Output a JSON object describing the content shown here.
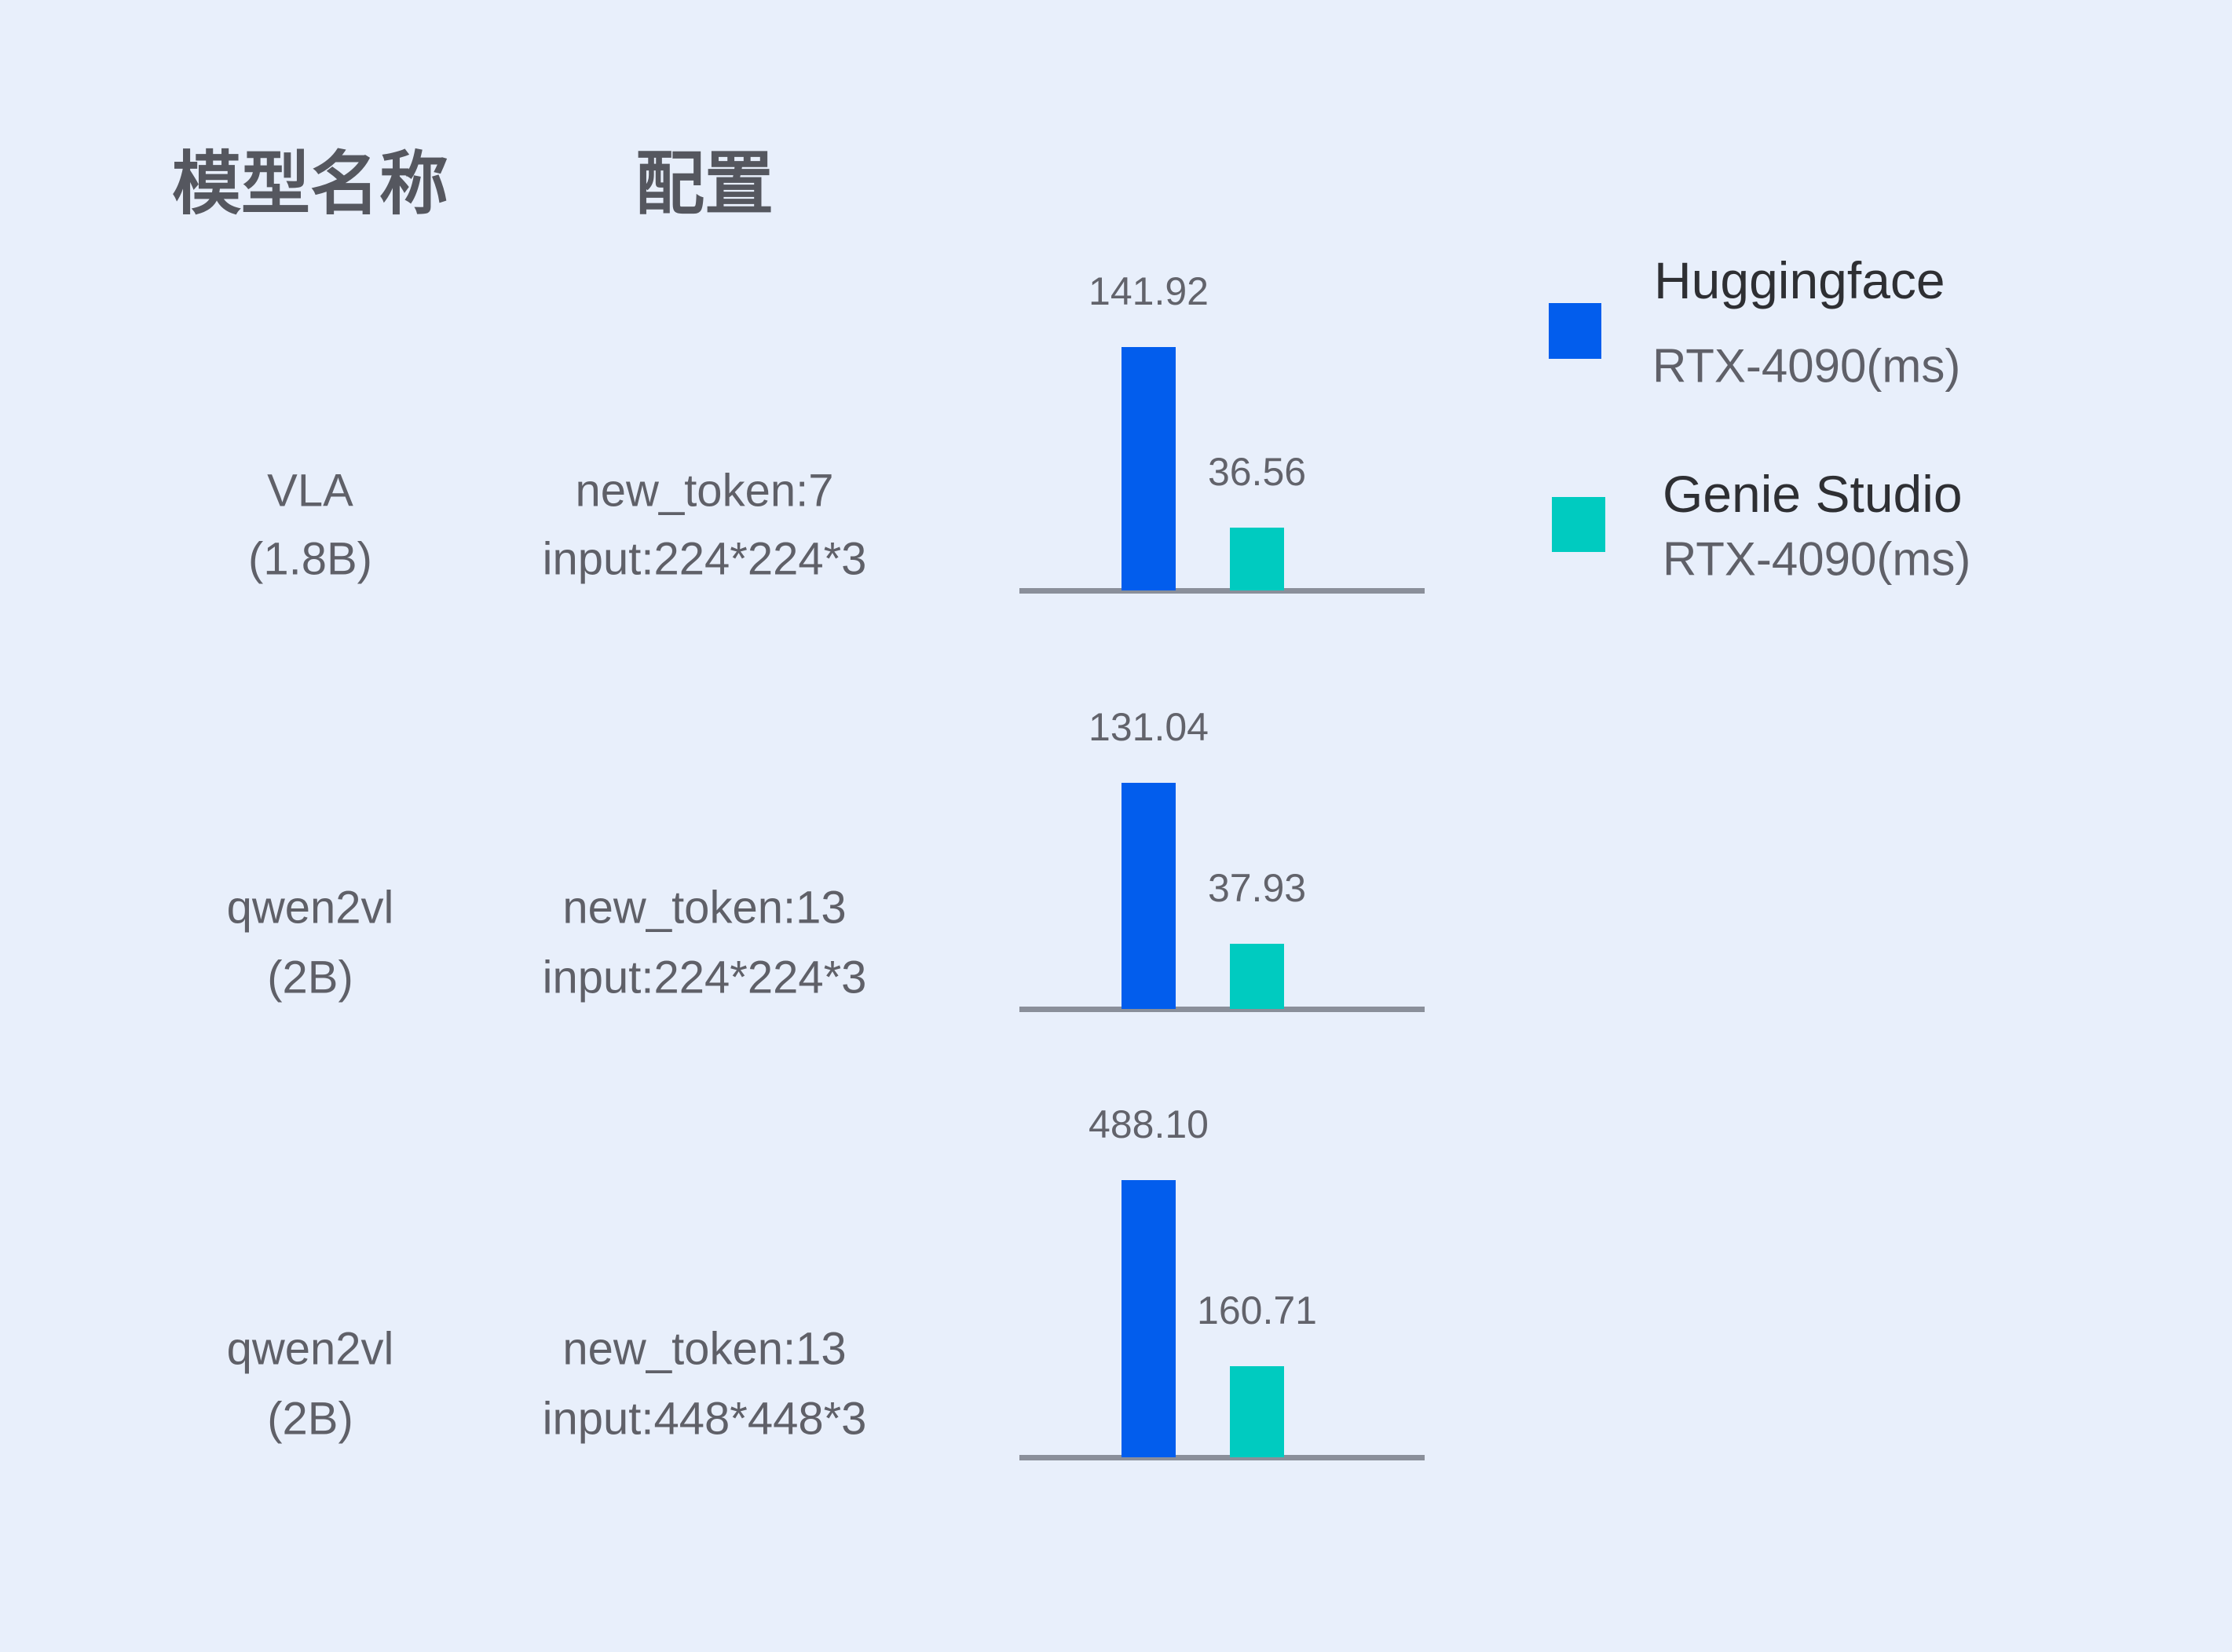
{
  "headers": {
    "model": "模型名称",
    "config": "配置"
  },
  "legend": [
    {
      "title": "Huggingface",
      "subtitle": "RTX-4090(ms)",
      "color": "#025ded"
    },
    {
      "title": "Genie Studio",
      "subtitle": "RTX-4090(ms)",
      "color": "#00cbc0"
    }
  ],
  "rows": [
    {
      "model": "VLA",
      "size": "(1.8B)",
      "config1": "new_token:7",
      "config2": "input:224*224*3"
    },
    {
      "model": "qwen2vl",
      "size": "(2B)",
      "config1": "new_token:13",
      "config2": "input:224*224*3"
    },
    {
      "model": "qwen2vl",
      "size": "(2B)",
      "config1": "new_token:13",
      "config2": "input:448*448*3"
    }
  ],
  "chart_data": {
    "type": "bar",
    "categories": [
      "VLA (1.8B) new_token:7 input:224*224*3",
      "qwen2vl (2B) new_token:13 input:224*224*3",
      "qwen2vl (2B) new_token:13 input:448*448*3"
    ],
    "series": [
      {
        "name": "Huggingface RTX-4090(ms)",
        "values": [
          141.92,
          131.04,
          488.1
        ],
        "labels": [
          "141.92",
          "131.04",
          "488.10"
        ],
        "color": "#025ded"
      },
      {
        "name": "Genie Studio RTX-4090(ms)",
        "values": [
          36.56,
          37.93,
          160.71
        ],
        "labels": [
          "36.56",
          "37.93",
          "160.71"
        ],
        "color": "#00cbc0"
      }
    ],
    "axis_color": "#8a8f9a",
    "grid": false,
    "legend_position": "right",
    "orientation": "vertical"
  }
}
